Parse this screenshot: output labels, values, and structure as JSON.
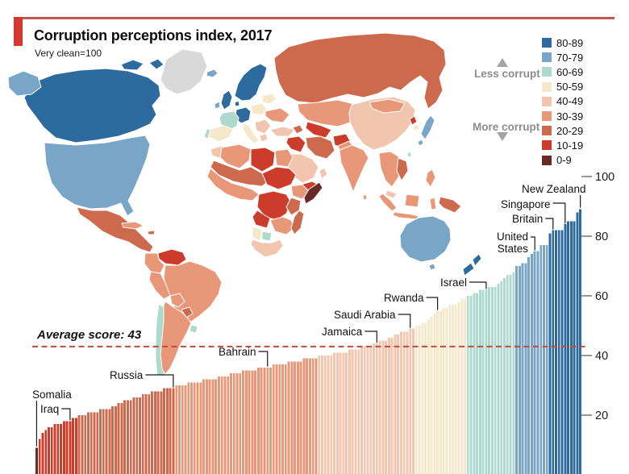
{
  "title": "Corruption perceptions index, 2017",
  "subtitle": "Very clean=100",
  "accent": {
    "red_block": "#d6382b",
    "top_rule": "#c0574b"
  },
  "legend": {
    "less_corrupt_label": "Less corrupt",
    "more_corrupt_label": "More corrupt",
    "items": [
      {
        "range": "80-89",
        "color": "#2d6b9e"
      },
      {
        "range": "70-79",
        "color": "#79a5c6"
      },
      {
        "range": "60-69",
        "color": "#aed9cd"
      },
      {
        "range": "50-59",
        "color": "#f5e8cb"
      },
      {
        "range": "40-49",
        "color": "#f2c5ae"
      },
      {
        "range": "30-39",
        "color": "#e89878"
      },
      {
        "range": "20-29",
        "color": "#cd6a4d"
      },
      {
        "range": "10-19",
        "color": "#cc3c2a"
      },
      {
        "range": "0-9",
        "color": "#692a25"
      }
    ]
  },
  "axis": {
    "ticks": [
      100,
      80,
      60,
      40,
      20
    ],
    "tick_color": "#999999"
  },
  "average": {
    "label": "Average score: 43",
    "value": 43,
    "line_color": "#c14a3c"
  },
  "chart_data": {
    "type": "bar",
    "title": "Corruption perceptions index, 2017",
    "xlabel": "",
    "ylabel": "",
    "ylim": [
      0,
      100
    ],
    "grid": false,
    "average_score": 43,
    "values": [
      9,
      12,
      14,
      15,
      16,
      16,
      17,
      17,
      17,
      18,
      18,
      18,
      19,
      19,
      20,
      20,
      20,
      21,
      21,
      21,
      21,
      22,
      22,
      22,
      22,
      23,
      23,
      24,
      24,
      25,
      25,
      25,
      26,
      26,
      26,
      27,
      27,
      27,
      28,
      28,
      28,
      28,
      29,
      29,
      29,
      29,
      30,
      30,
      30,
      30,
      31,
      31,
      31,
      31,
      31,
      32,
      32,
      32,
      32,
      32,
      33,
      33,
      33,
      33,
      34,
      34,
      34,
      34,
      35,
      35,
      35,
      35,
      35,
      36,
      36,
      36,
      36,
      36,
      37,
      37,
      37,
      37,
      37,
      38,
      38,
      38,
      38,
      38,
      39,
      39,
      39,
      39,
      39,
      40,
      40,
      40,
      40,
      40,
      41,
      41,
      41,
      41,
      41,
      42,
      42,
      42,
      42,
      43,
      43,
      43,
      43,
      44,
      44,
      45,
      45,
      45,
      46,
      46,
      47,
      47,
      48,
      48,
      48,
      49,
      49,
      50,
      50,
      51,
      51,
      52,
      53,
      54,
      55,
      55,
      56,
      56,
      57,
      57,
      57,
      58,
      59,
      59,
      60,
      60,
      61,
      61,
      62,
      62,
      62,
      63,
      63,
      63,
      64,
      65,
      66,
      67,
      67,
      68,
      70,
      70,
      71,
      71,
      73,
      74,
      75,
      75,
      77,
      77,
      77,
      81,
      82,
      82,
      82,
      82,
      84,
      85,
      85,
      85,
      88,
      89
    ],
    "annotations": [
      {
        "label": "Somalia",
        "index": 0,
        "value": 9
      },
      {
        "label": "Iraq",
        "index": 11,
        "value": 18
      },
      {
        "label": "Russia",
        "index": 45,
        "value": 29
      },
      {
        "label": "Bahrain",
        "index": 76,
        "value": 36
      },
      {
        "label": "Jamaica",
        "index": 112,
        "value": 44
      },
      {
        "label": "Saudi Arabia",
        "index": 123,
        "value": 49
      },
      {
        "label": "Rwanda",
        "index": 132,
        "value": 55
      },
      {
        "label": "Israel",
        "index": 148,
        "value": 62
      },
      {
        "label": "United States",
        "index": 164,
        "value": 75
      },
      {
        "label": "Britain",
        "index": 170,
        "value": 82
      },
      {
        "label": "Singapore",
        "index": 174,
        "value": 84
      },
      {
        "label": "New Zealand",
        "index": 179,
        "value": 89
      }
    ]
  },
  "map": {
    "no_data_color": "#d9d9d9",
    "regions": {
      "greenland": "no-data",
      "canada": "80-89",
      "canada-islands1": "80-89",
      "canada-islands2": "80-89",
      "alaska": "70-79",
      "usa": "70-79",
      "mexico-central-america": "20-29",
      "cuba": "30-39",
      "hispaniola": "20-29",
      "venezuela": "10-19",
      "colombia": "30-39",
      "brazil": "30-39",
      "peru": "30-39",
      "bolivia": "30-39",
      "paraguay": "20-29",
      "argentina": "30-39",
      "chile": "60-69",
      "uruguay": "60-69",
      "iceland": "70-79",
      "scandinavia": "80-89",
      "uk": "80-89",
      "ireland": "70-79",
      "denmark": "80-89",
      "germany": "80-89",
      "france": "60-69",
      "spain": "50-59",
      "portugal": "60-69",
      "italy": "50-59",
      "poland": "50-59",
      "baltics": "50-59",
      "ukraine": "30-39",
      "balkans": "40-49",
      "greece": "40-49",
      "russia": "20-29",
      "kazakhstan": "30-39",
      "uzbekistan-turkmenistan": "10-19",
      "caucasus": "20-29",
      "turkey": "40-49",
      "syria-iraq": "10-19",
      "iran": "20-29",
      "afghanistan": "10-19",
      "pakistan": "30-39",
      "saudi-arabia": "40-49",
      "yemen": "10-19",
      "oman": "40-49",
      "morocco": "40-49",
      "algeria": "30-39",
      "libya": "10-19",
      "egypt": "30-39",
      "sahel": "20-29",
      "chad-sudan": "10-19",
      "west-africa": "30-39",
      "ethiopia": "30-39",
      "somalia": "0-9",
      "central-africa": "10-19",
      "kenya-tanzania": "20-29",
      "angola": "10-19",
      "zambia-mozambique": "30-39",
      "namibia": "50-59",
      "botswana": "60-69",
      "south-africa": "40-49",
      "madagascar": "20-29",
      "india": "30-39",
      "sri-lanka": "30-39",
      "china": "40-49",
      "mongolia": "30-39",
      "north-korea": "10-19",
      "south-korea": "50-59",
      "japan": "70-79",
      "japan-south": "70-79",
      "taiwan": "60-69",
      "philippines": "30-39",
      "southeast-asia": "30-39",
      "laos-cambodia": "20-29",
      "malaysia": "40-49",
      "sumatra": "30-39",
      "borneo": "30-39",
      "java": "30-39",
      "sulawesi": "30-39",
      "new-guinea": "20-29",
      "australia": "70-79",
      "tasmania": "70-79",
      "new-zealand-north": "80-89",
      "new-zealand-south": "80-89"
    }
  }
}
